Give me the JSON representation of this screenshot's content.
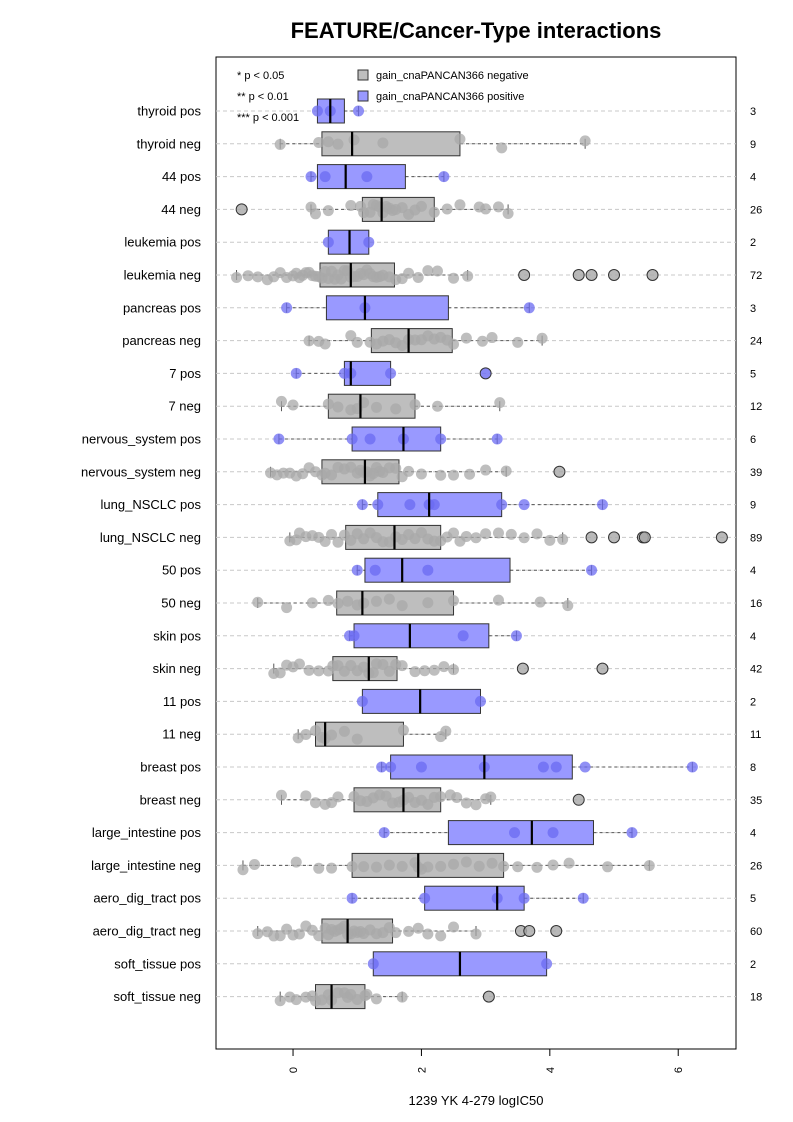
{
  "chart_data": {
    "type": "boxplot",
    "orientation": "horizontal",
    "title": "FEATURE/Cancer-Type interactions",
    "xlabel": "1239 YK 4-279 logIC50",
    "xlim": [
      -1.2,
      6.9
    ],
    "xticks": [
      0,
      2,
      4,
      6
    ],
    "grid": "dashed horizontal lines",
    "significance_legend": [
      "* p < 0.05",
      "** p < 0.01",
      "*** p < 0.001"
    ],
    "legend": {
      "placement": "top",
      "entries": [
        {
          "name": "gain_cnaPANCAN366 negative",
          "color": "#bebebe"
        },
        {
          "name": "gain_cnaPANCAN366 positive",
          "color": "#9999ff"
        }
      ]
    },
    "colors": {
      "negative": "#bebebe",
      "positive": "#9999ff",
      "neg_point": "#a8a8a8",
      "pos_point": "#6b6bf2"
    },
    "groups": [
      {
        "label": "thyroid pos",
        "count": "3",
        "status": "positive",
        "q1": 0.38,
        "median": 0.58,
        "q3": 0.8,
        "wlo": 0.38,
        "whi": 1.02,
        "points": [
          0.38,
          0.58,
          1.02
        ],
        "outliers": []
      },
      {
        "label": "thyroid neg",
        "count": "9",
        "status": "negative",
        "q1": 0.45,
        "median": 0.92,
        "q3": 2.6,
        "wlo": -0.2,
        "whi": 4.55,
        "points": [
          -0.2,
          0.4,
          0.55,
          0.7,
          0.95,
          2.6,
          3.25,
          4.55,
          1.4
        ],
        "outliers": []
      },
      {
        "label": "44 pos",
        "count": "4",
        "status": "positive",
        "q1": 0.38,
        "median": 0.82,
        "q3": 1.75,
        "wlo": 0.28,
        "whi": 2.35,
        "points": [
          0.28,
          0.5,
          1.15,
          2.35
        ],
        "outliers": []
      },
      {
        "label": "44 neg",
        "count": "26",
        "status": "negative",
        "q1": 1.08,
        "median": 1.38,
        "q3": 2.2,
        "wlo": 0.28,
        "whi": 3.35,
        "points": [
          0.28,
          0.35,
          0.55,
          0.9,
          1.05,
          1.1,
          1.2,
          1.25,
          1.3,
          1.35,
          1.4,
          1.45,
          1.5,
          1.55,
          1.6,
          1.7,
          1.8,
          1.9,
          2.0,
          2.2,
          2.4,
          2.6,
          2.9,
          3.0,
          3.2,
          3.35
        ],
        "outliers": [
          -0.8
        ]
      },
      {
        "label": "leukemia pos",
        "count": "2",
        "status": "positive",
        "q1": 0.55,
        "median": 0.88,
        "q3": 1.18,
        "wlo": 0.55,
        "whi": 1.18,
        "points": [
          0.55,
          1.18
        ],
        "outliers": []
      },
      {
        "label": "leukemia neg",
        "count": "72",
        "status": "negative",
        "q1": 0.42,
        "median": 0.9,
        "q3": 1.58,
        "wlo": -0.88,
        "whi": 2.72,
        "points": [
          -0.88,
          -0.7,
          -0.55,
          -0.4,
          -0.3,
          -0.2,
          -0.1,
          0.0,
          0.05,
          0.1,
          0.15,
          0.2,
          0.25,
          0.3,
          0.35,
          0.4,
          0.45,
          0.5,
          0.55,
          0.6,
          0.65,
          0.7,
          0.75,
          0.8,
          0.85,
          0.9,
          0.95,
          1.0,
          1.05,
          1.1,
          1.15,
          1.2,
          1.25,
          1.3,
          1.35,
          1.4,
          1.5,
          1.6,
          1.7,
          1.8,
          1.95,
          2.1,
          2.25,
          2.5,
          2.72
        ],
        "outliers": [
          3.6,
          4.45,
          4.65,
          5.0,
          5.6
        ]
      },
      {
        "label": "pancreas pos",
        "count": "3",
        "status": "positive",
        "q1": 0.52,
        "median": 1.12,
        "q3": 2.42,
        "wlo": -0.1,
        "whi": 3.68,
        "points": [
          -0.1,
          1.12,
          3.68
        ],
        "outliers": []
      },
      {
        "label": "pancreas neg",
        "count": "24",
        "status": "negative",
        "q1": 1.22,
        "median": 1.8,
        "q3": 2.48,
        "wlo": 0.25,
        "whi": 3.88,
        "points": [
          0.25,
          0.4,
          0.5,
          0.9,
          1.0,
          1.2,
          1.3,
          1.4,
          1.5,
          1.6,
          1.7,
          1.8,
          1.9,
          2.0,
          2.1,
          2.2,
          2.3,
          2.4,
          2.5,
          2.7,
          2.95,
          3.1,
          3.5,
          3.88
        ],
        "outliers": []
      },
      {
        "label": "7 pos",
        "count": "5",
        "status": "positive",
        "q1": 0.8,
        "median": 0.9,
        "q3": 1.52,
        "wlo": 0.05,
        "whi": 1.52,
        "points": [
          0.05,
          0.8,
          0.9,
          1.52
        ],
        "outliers": [
          3.0
        ]
      },
      {
        "label": "7 neg",
        "count": "12",
        "status": "negative",
        "q1": 0.55,
        "median": 1.05,
        "q3": 1.9,
        "wlo": -0.18,
        "whi": 3.22,
        "points": [
          -0.18,
          0.0,
          0.55,
          0.7,
          0.9,
          1.0,
          1.1,
          1.3,
          1.6,
          1.9,
          2.25,
          3.22
        ],
        "outliers": []
      },
      {
        "label": "nervous_system pos",
        "count": "6",
        "status": "positive",
        "q1": 0.92,
        "median": 1.72,
        "q3": 2.3,
        "wlo": -0.22,
        "whi": 3.18,
        "points": [
          -0.22,
          0.92,
          1.2,
          1.72,
          2.3,
          3.18
        ],
        "outliers": []
      },
      {
        "label": "nervous_system neg",
        "count": "39",
        "status": "negative",
        "q1": 0.45,
        "median": 1.12,
        "q3": 1.65,
        "wlo": -0.35,
        "whi": 3.32,
        "points": [
          -0.35,
          -0.25,
          -0.15,
          -0.05,
          0.05,
          0.15,
          0.25,
          0.35,
          0.45,
          0.5,
          0.6,
          0.7,
          0.8,
          0.9,
          1.0,
          1.05,
          1.1,
          1.15,
          1.2,
          1.25,
          1.3,
          1.35,
          1.4,
          1.5,
          1.6,
          1.7,
          1.8,
          2.0,
          2.3,
          2.5,
          2.75,
          3.0,
          3.32
        ],
        "outliers": [
          4.15
        ]
      },
      {
        "label": "lung_NSCLC pos",
        "count": "9",
        "status": "positive",
        "q1": 1.32,
        "median": 2.12,
        "q3": 3.25,
        "wlo": 1.08,
        "whi": 4.82,
        "points": [
          1.08,
          1.32,
          1.82,
          2.12,
          2.2,
          3.25,
          3.6,
          4.82
        ],
        "outliers": []
      },
      {
        "label": "lung_NSCLC neg",
        "count": "89",
        "status": "negative",
        "q1": 0.82,
        "median": 1.58,
        "q3": 2.3,
        "wlo": -0.05,
        "whi": 4.2,
        "points": [
          -0.05,
          0.05,
          0.1,
          0.2,
          0.3,
          0.4,
          0.5,
          0.6,
          0.7,
          0.8,
          0.9,
          1.0,
          1.1,
          1.2,
          1.3,
          1.4,
          1.5,
          1.6,
          1.7,
          1.8,
          1.9,
          2.0,
          2.1,
          2.2,
          2.3,
          2.4,
          2.5,
          2.6,
          2.7,
          2.85,
          3.0,
          3.2,
          3.4,
          3.6,
          3.8,
          4.0,
          4.2
        ],
        "outliers": [
          4.65,
          5.0,
          5.45,
          5.48,
          6.68
        ]
      },
      {
        "label": "50 pos",
        "count": "4",
        "status": "positive",
        "q1": 1.12,
        "median": 1.7,
        "q3": 3.38,
        "wlo": 1.0,
        "whi": 4.65,
        "points": [
          1.0,
          1.28,
          2.1,
          4.65
        ],
        "outliers": []
      },
      {
        "label": "50 neg",
        "count": "16",
        "status": "negative",
        "q1": 0.68,
        "median": 1.08,
        "q3": 2.5,
        "wlo": -0.55,
        "whi": 4.28,
        "points": [
          -0.55,
          -0.1,
          0.3,
          0.55,
          0.7,
          0.85,
          1.0,
          1.1,
          1.3,
          1.7,
          2.1,
          2.5,
          3.2,
          3.85,
          4.28,
          1.5
        ],
        "outliers": []
      },
      {
        "label": "skin pos",
        "count": "4",
        "status": "positive",
        "q1": 0.95,
        "median": 1.82,
        "q3": 3.05,
        "wlo": 0.88,
        "whi": 3.48,
        "points": [
          0.88,
          0.95,
          2.65,
          3.48
        ],
        "outliers": []
      },
      {
        "label": "skin neg",
        "count": "42",
        "status": "negative",
        "q1": 0.62,
        "median": 1.18,
        "q3": 1.62,
        "wlo": -0.3,
        "whi": 2.5,
        "points": [
          -0.3,
          -0.2,
          -0.1,
          0.0,
          0.1,
          0.25,
          0.4,
          0.55,
          0.62,
          0.7,
          0.8,
          0.9,
          1.0,
          1.1,
          1.18,
          1.25,
          1.3,
          1.4,
          1.5,
          1.6,
          1.7,
          1.9,
          2.05,
          2.2,
          2.35,
          2.5
        ],
        "outliers": [
          3.58,
          4.82
        ]
      },
      {
        "label": "11 pos",
        "count": "2",
        "status": "positive",
        "q1": 1.08,
        "median": 1.98,
        "q3": 2.92,
        "wlo": 1.08,
        "whi": 2.92,
        "points": [
          1.08,
          2.92
        ],
        "outliers": []
      },
      {
        "label": "11 neg",
        "count": "11",
        "status": "negative",
        "q1": 0.35,
        "median": 0.5,
        "q3": 1.72,
        "wlo": 0.08,
        "whi": 2.38,
        "points": [
          0.08,
          0.2,
          0.35,
          0.45,
          0.5,
          0.6,
          0.8,
          1.0,
          1.72,
          2.3,
          2.38
        ],
        "outliers": []
      },
      {
        "label": "breast pos",
        "count": "8",
        "status": "positive",
        "q1": 1.52,
        "median": 2.98,
        "q3": 4.35,
        "wlo": 1.38,
        "whi": 6.22,
        "points": [
          1.38,
          1.52,
          2.0,
          2.98,
          3.9,
          4.1,
          4.55,
          6.22
        ],
        "outliers": []
      },
      {
        "label": "breast neg",
        "count": "35",
        "status": "negative",
        "q1": 0.95,
        "median": 1.72,
        "q3": 2.3,
        "wlo": -0.18,
        "whi": 3.08,
        "points": [
          -0.18,
          0.2,
          0.35,
          0.5,
          0.6,
          0.7,
          0.95,
          1.05,
          1.15,
          1.25,
          1.35,
          1.45,
          1.55,
          1.65,
          1.72,
          1.8,
          1.9,
          2.0,
          2.1,
          2.2,
          2.3,
          2.45,
          2.55,
          2.7,
          2.85,
          3.0,
          3.08
        ],
        "outliers": [
          4.45
        ]
      },
      {
        "label": "large_intestine pos",
        "count": "4",
        "status": "positive",
        "q1": 2.42,
        "median": 3.72,
        "q3": 4.68,
        "wlo": 1.42,
        "whi": 5.28,
        "points": [
          1.42,
          3.45,
          4.05,
          5.28
        ],
        "outliers": []
      },
      {
        "label": "large_intestine neg",
        "count": "26",
        "status": "negative",
        "q1": 0.92,
        "median": 1.95,
        "q3": 3.28,
        "wlo": -0.78,
        "whi": 5.55,
        "points": [
          -0.78,
          -0.6,
          0.05,
          0.4,
          0.6,
          0.92,
          1.1,
          1.3,
          1.5,
          1.7,
          1.9,
          1.95,
          2.1,
          2.3,
          2.5,
          2.7,
          2.9,
          3.1,
          3.28,
          3.5,
          3.8,
          4.05,
          4.3,
          4.9,
          5.55,
          2.0
        ],
        "outliers": []
      },
      {
        "label": "aero_dig_tract pos",
        "count": "5",
        "status": "positive",
        "q1": 2.05,
        "median": 3.18,
        "q3": 3.6,
        "wlo": 0.92,
        "whi": 4.52,
        "points": [
          0.92,
          2.05,
          3.18,
          3.6,
          4.52
        ],
        "outliers": []
      },
      {
        "label": "aero_dig_tract neg",
        "count": "60",
        "status": "negative",
        "q1": 0.45,
        "median": 0.85,
        "q3": 1.55,
        "wlo": -0.55,
        "whi": 2.85,
        "points": [
          -0.55,
          -0.4,
          -0.3,
          -0.2,
          -0.1,
          0.0,
          0.1,
          0.2,
          0.3,
          0.4,
          0.5,
          0.55,
          0.6,
          0.65,
          0.7,
          0.75,
          0.8,
          0.85,
          0.9,
          0.95,
          1.0,
          1.05,
          1.1,
          1.2,
          1.3,
          1.4,
          1.5,
          1.6,
          1.8,
          1.95,
          2.1,
          2.3,
          2.5,
          2.85
        ],
        "outliers": [
          3.55,
          3.68,
          4.1
        ]
      },
      {
        "label": "soft_tissue pos",
        "count": "2",
        "status": "positive",
        "q1": 1.25,
        "median": 2.6,
        "q3": 3.95,
        "wlo": 1.25,
        "whi": 3.95,
        "points": [
          1.25,
          3.95
        ],
        "outliers": []
      },
      {
        "label": "soft_tissue neg",
        "count": "18",
        "status": "negative",
        "q1": 0.35,
        "median": 0.6,
        "q3": 1.12,
        "wlo": -0.2,
        "whi": 1.7,
        "points": [
          -0.2,
          -0.05,
          0.05,
          0.2,
          0.35,
          0.45,
          0.55,
          0.6,
          0.7,
          0.8,
          0.9,
          1.0,
          1.12,
          1.3,
          1.7,
          0.3,
          0.85,
          1.15
        ],
        "outliers": [
          3.05
        ]
      }
    ]
  }
}
